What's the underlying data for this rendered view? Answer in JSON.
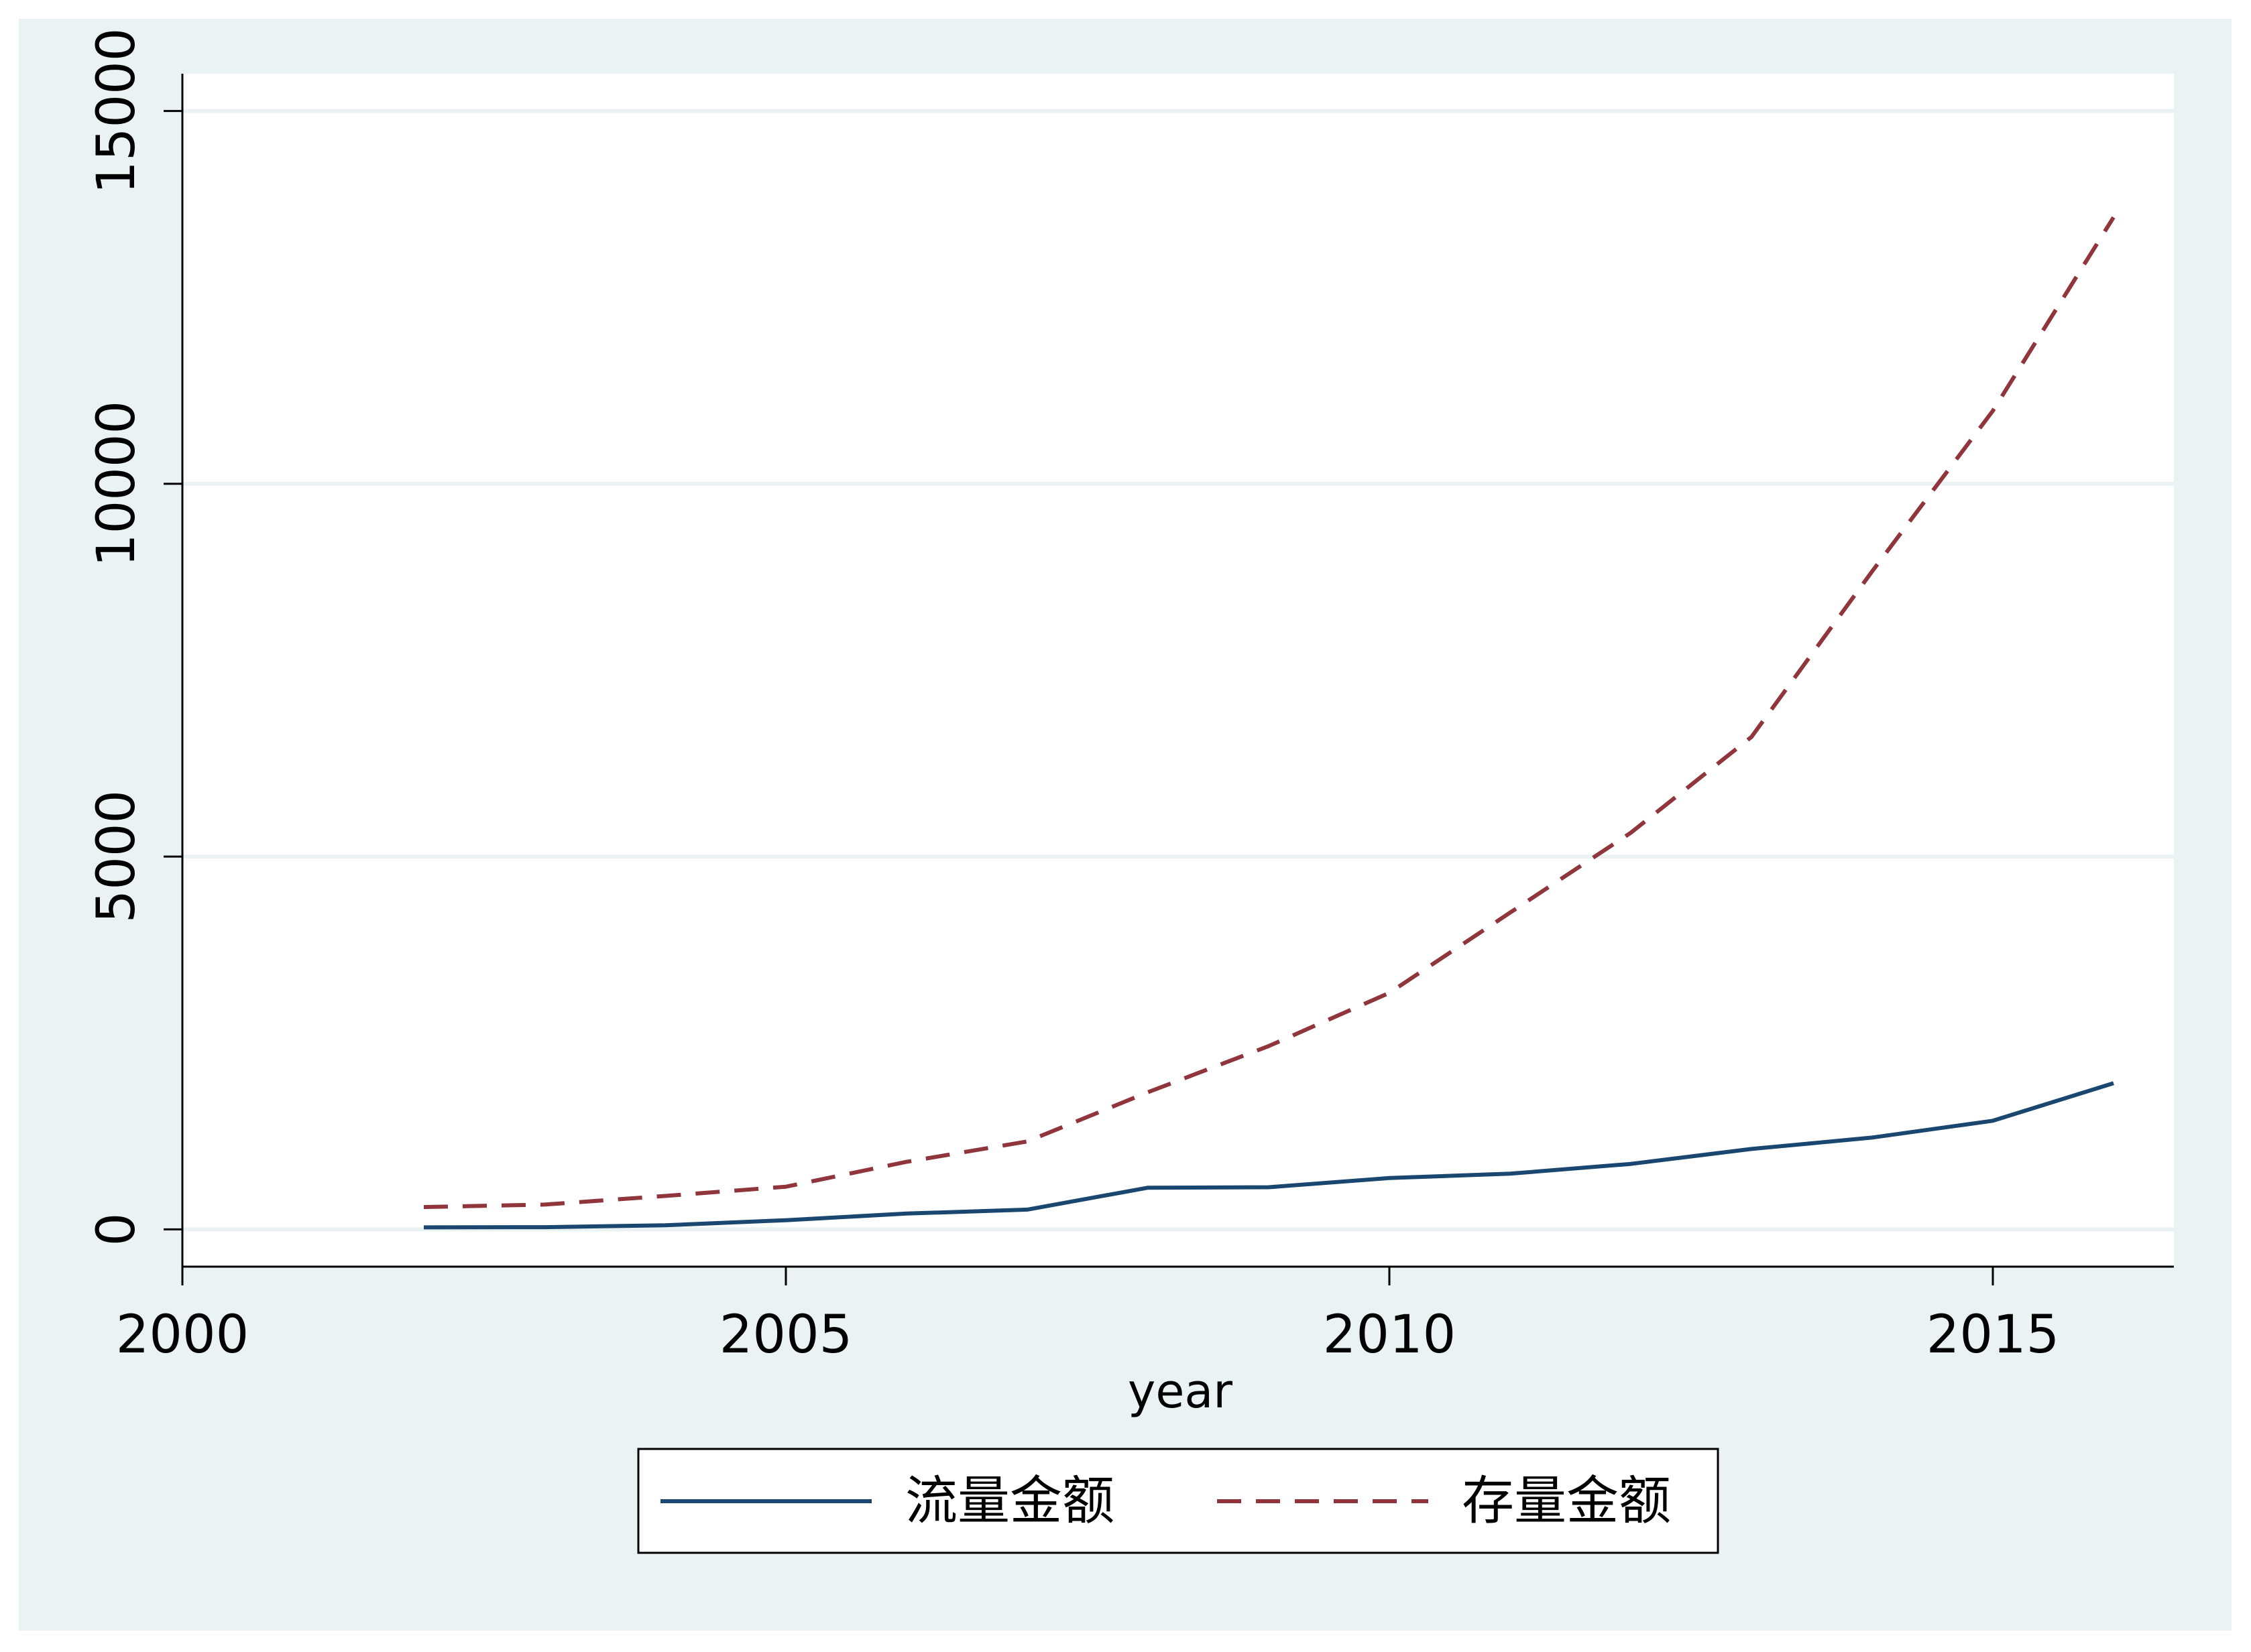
{
  "chart_data": {
    "type": "line",
    "title": "",
    "xlabel": "year",
    "ylabel": "",
    "xlim": [
      2000,
      2016.5
    ],
    "ylim": [
      -500,
      15500
    ],
    "xticks": [
      2000,
      2005,
      2010,
      2015
    ],
    "yticks": [
      0,
      5000,
      10000,
      15000
    ],
    "grid": true,
    "legend_position": "bottom",
    "x": [
      2002,
      2003,
      2004,
      2005,
      2006,
      2007,
      2008,
      2009,
      2010,
      2011,
      2012,
      2013,
      2014,
      2015,
      2016
    ],
    "series": [
      {
        "name": "流量金额",
        "style": "solid",
        "color": "#1a476f",
        "values": [
          27,
          29,
          55,
          123,
          212,
          265,
          559,
          565,
          688,
          747,
          878,
          1078,
          1231,
          1457,
          1961
        ]
      },
      {
        "name": "存量金额",
        "style": "dashed",
        "color": "#90353b",
        "values": [
          299,
          332,
          448,
          572,
          906,
          1179,
          1840,
          2458,
          3172,
          4248,
          5319,
          6605,
          8826,
          10979,
          13574
        ]
      }
    ]
  },
  "colors": {
    "outer_background": "#eaf2f3",
    "plot_background": "#ffffff",
    "gridline": "#eaf2f3",
    "axis": "#000000"
  }
}
